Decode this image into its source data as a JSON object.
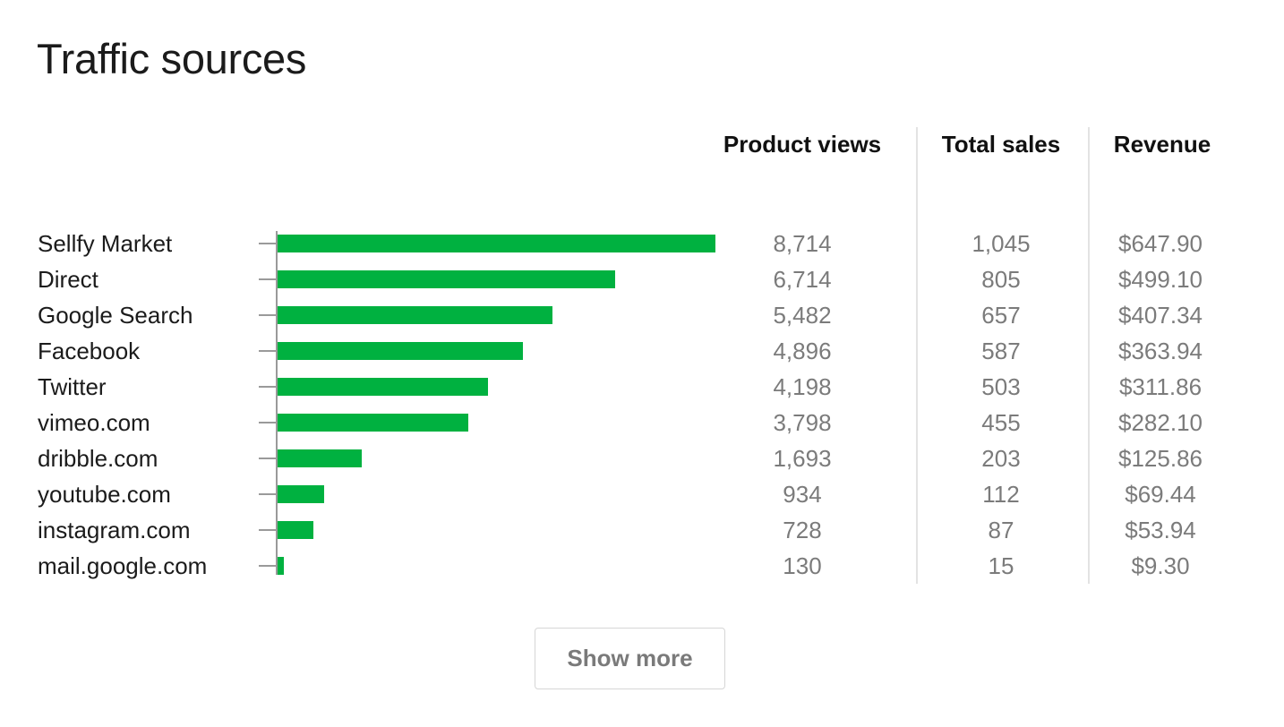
{
  "title": "Traffic sources",
  "columns": {
    "product_views": "Product views",
    "total_sales": "Total sales",
    "revenue": "Revenue"
  },
  "show_more_label": "Show more",
  "colors": {
    "bar": "#00b140"
  },
  "chart_data": {
    "type": "bar",
    "orientation": "horizontal",
    "title": "Traffic sources",
    "xlabel": "",
    "ylabel": "",
    "grid": false,
    "categories": [
      "Sellfy Market",
      "Direct",
      "Google Search",
      "Facebook",
      "Twitter",
      "vimeo.com",
      "dribble.com",
      "youtube.com",
      "instagram.com",
      "mail.google.com"
    ],
    "values": [
      8714,
      6714,
      5482,
      4896,
      4198,
      3798,
      1693,
      934,
      728,
      130
    ],
    "xlim": [
      0,
      8714
    ],
    "table": {
      "product_views": [
        "8,714",
        "6,714",
        "5,482",
        "4,896",
        "4,198",
        "3,798",
        "1,693",
        "934",
        "728",
        "130"
      ],
      "total_sales": [
        "1,045",
        "805",
        "657",
        "587",
        "503",
        "455",
        "203",
        "112",
        "87",
        "15"
      ],
      "revenue": [
        "$647.90",
        "$499.10",
        "$407.34",
        "$363.94",
        "$311.86",
        "$282.10",
        "$125.86",
        "$69.44",
        "$53.94",
        "$9.30"
      ]
    }
  }
}
